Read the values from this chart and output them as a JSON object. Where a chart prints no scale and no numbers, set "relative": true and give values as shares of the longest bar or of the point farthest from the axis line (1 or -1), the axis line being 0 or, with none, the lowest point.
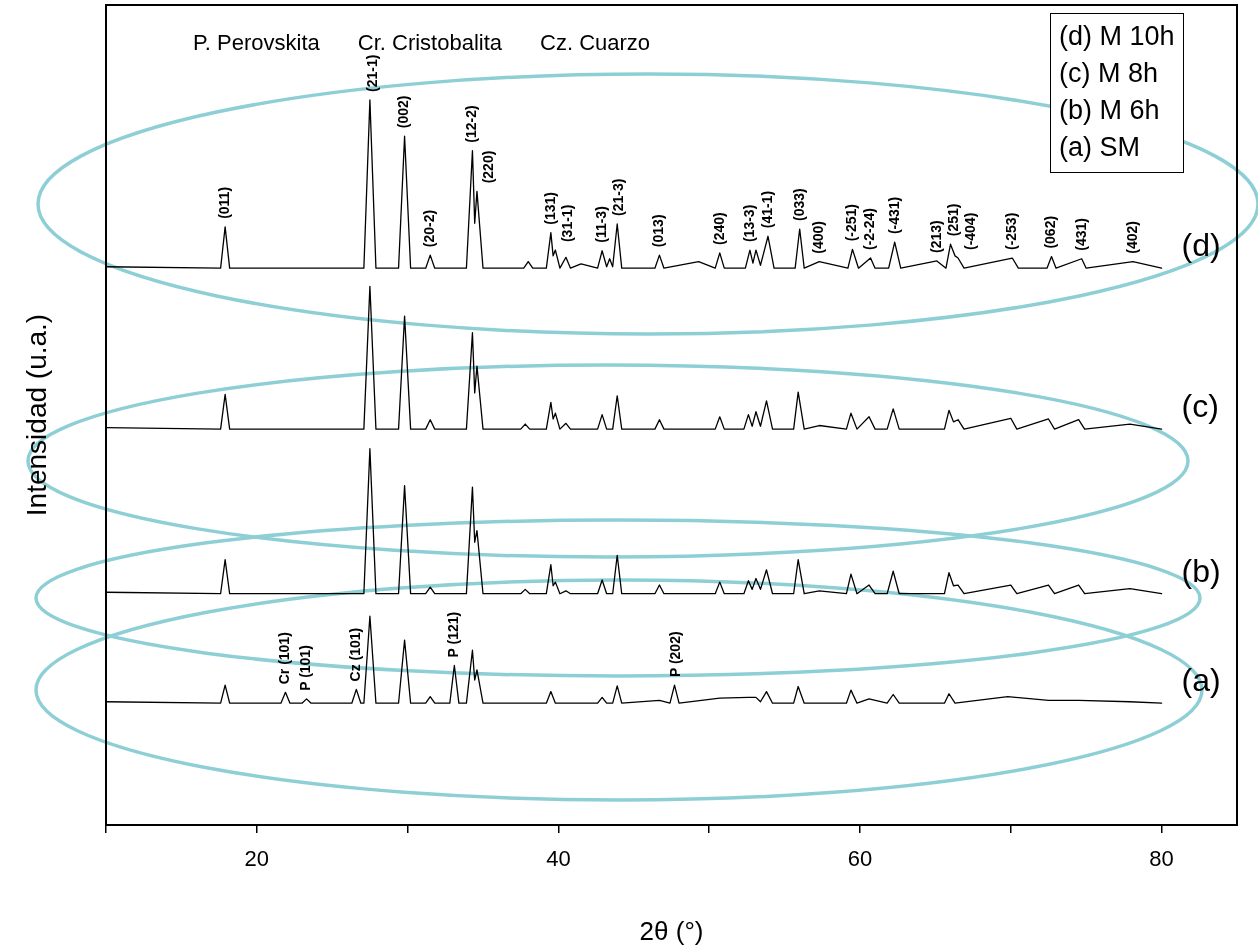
{
  "chart_data": {
    "type": "line",
    "relative": true,
    "xlabel": "2θ (°)",
    "ylabel": "Intensidad (u.a.)",
    "xlim": [
      10,
      85
    ],
    "xticks": [
      {
        "value": 10,
        "label": null
      },
      20,
      {
        "value": 30,
        "label": null
      },
      40,
      {
        "value": 50,
        "label": null
      },
      60,
      {
        "value": 70,
        "label": null
      },
      80
    ],
    "legend": false,
    "grid": false,
    "marker": "none",
    "line_style": "solid",
    "series": [
      {
        "name": "(d)",
        "color": "#000000",
        "x": [
          10,
          17.6,
          17.9,
          18.2,
          27.1,
          27.5,
          27.9,
          29.4,
          29.8,
          30.2,
          31.2,
          31.5,
          31.8,
          33.9,
          34.3,
          34.45,
          34.6,
          35.0,
          37.7,
          38.0,
          38.3,
          39.2,
          39.5,
          39.65,
          39.8,
          40.1,
          40.5,
          40.8,
          41.5,
          42.6,
          42.9,
          43.2,
          43.4,
          43.6,
          43.9,
          44.2,
          46.4,
          46.7,
          47.0,
          49.3,
          50.4,
          50.7,
          51.0,
          52.4,
          52.7,
          52.9,
          53.1,
          53.4,
          53.9,
          54.3,
          55.7,
          56.0,
          56.3,
          57.3,
          59.2,
          59.5,
          59.9,
          60.7,
          61.0,
          61.9,
          62.3,
          62.7,
          65.1,
          65.7,
          66.0,
          66.3,
          66.5,
          66.9,
          70.1,
          70.5,
          72.4,
          72.7,
          73.0,
          74.7,
          75.0,
          78.1,
          80
        ],
        "values": [
          0.77,
          0.768,
          0.825,
          0.768,
          0.768,
          1.0,
          0.768,
          0.768,
          0.95,
          0.768,
          0.768,
          0.786,
          0.768,
          0.768,
          0.93,
          0.83,
          0.874,
          0.768,
          0.768,
          0.777,
          0.768,
          0.768,
          0.817,
          0.785,
          0.793,
          0.768,
          0.783,
          0.768,
          0.774,
          0.768,
          0.792,
          0.77,
          0.781,
          0.77,
          0.829,
          0.768,
          0.768,
          0.786,
          0.768,
          0.777,
          0.768,
          0.789,
          0.768,
          0.768,
          0.793,
          0.775,
          0.793,
          0.772,
          0.812,
          0.768,
          0.768,
          0.822,
          0.768,
          0.777,
          0.768,
          0.794,
          0.768,
          0.782,
          0.768,
          0.768,
          0.804,
          0.768,
          0.778,
          0.768,
          0.801,
          0.785,
          0.782,
          0.768,
          0.782,
          0.768,
          0.768,
          0.784,
          0.768,
          0.781,
          0.768,
          0.777,
          0.768
        ]
      },
      {
        "name": "(c)",
        "color": "#000000",
        "x": [
          10,
          17.6,
          17.9,
          18.2,
          27.1,
          27.5,
          27.9,
          29.4,
          29.8,
          30.2,
          31.2,
          31.5,
          31.8,
          33.9,
          34.3,
          34.45,
          34.6,
          35.0,
          37.5,
          37.8,
          38.1,
          39.2,
          39.5,
          39.65,
          39.8,
          40.1,
          40.5,
          40.8,
          42.6,
          42.9,
          43.2,
          43.6,
          43.9,
          44.2,
          46.4,
          46.7,
          47.0,
          50.4,
          50.7,
          51.0,
          52.3,
          52.6,
          52.85,
          53.1,
          53.4,
          53.8,
          54.2,
          55.6,
          55.9,
          56.3,
          57.3,
          59.1,
          59.4,
          59.8,
          60.6,
          61.0,
          61.8,
          62.2,
          62.6,
          65.6,
          65.9,
          66.2,
          66.5,
          66.9,
          70.0,
          70.4,
          72.5,
          72.9,
          74.5,
          74.9,
          77.9,
          80
        ],
        "values": [
          0.548,
          0.546,
          0.594,
          0.546,
          0.546,
          0.743,
          0.546,
          0.546,
          0.702,
          0.546,
          0.546,
          0.559,
          0.546,
          0.546,
          0.679,
          0.596,
          0.633,
          0.546,
          0.546,
          0.553,
          0.546,
          0.546,
          0.583,
          0.56,
          0.568,
          0.546,
          0.554,
          0.546,
          0.546,
          0.566,
          0.546,
          0.546,
          0.592,
          0.546,
          0.546,
          0.559,
          0.546,
          0.546,
          0.563,
          0.546,
          0.546,
          0.566,
          0.55,
          0.57,
          0.55,
          0.585,
          0.546,
          0.546,
          0.597,
          0.546,
          0.551,
          0.546,
          0.568,
          0.546,
          0.563,
          0.546,
          0.546,
          0.574,
          0.546,
          0.546,
          0.572,
          0.556,
          0.559,
          0.546,
          0.561,
          0.546,
          0.56,
          0.546,
          0.559,
          0.546,
          0.553,
          0.546
        ]
      },
      {
        "name": "(b)",
        "color": "#000000",
        "x": [
          10,
          17.6,
          17.9,
          18.2,
          27.1,
          27.5,
          27.9,
          29.4,
          29.8,
          30.2,
          31.2,
          31.5,
          31.8,
          33.9,
          34.3,
          34.45,
          34.6,
          35.0,
          37.5,
          37.8,
          38.1,
          39.2,
          39.5,
          39.65,
          39.8,
          40.1,
          40.5,
          40.8,
          42.6,
          42.9,
          43.2,
          43.6,
          43.9,
          44.2,
          46.4,
          46.7,
          47.0,
          50.4,
          50.7,
          51.0,
          52.3,
          52.6,
          52.85,
          53.1,
          53.4,
          53.8,
          54.2,
          55.6,
          55.9,
          56.3,
          57.3,
          59.1,
          59.4,
          59.8,
          60.6,
          61.0,
          61.8,
          62.2,
          62.6,
          65.6,
          65.9,
          66.2,
          66.5,
          66.9,
          70.0,
          70.4,
          72.5,
          72.9,
          74.5,
          74.9,
          77.9,
          80
        ],
        "values": [
          0.321,
          0.319,
          0.366,
          0.319,
          0.319,
          0.519,
          0.319,
          0.319,
          0.468,
          0.319,
          0.319,
          0.328,
          0.319,
          0.319,
          0.466,
          0.39,
          0.406,
          0.319,
          0.319,
          0.325,
          0.319,
          0.319,
          0.359,
          0.33,
          0.335,
          0.319,
          0.323,
          0.319,
          0.319,
          0.338,
          0.319,
          0.319,
          0.372,
          0.319,
          0.319,
          0.331,
          0.319,
          0.319,
          0.335,
          0.319,
          0.319,
          0.337,
          0.325,
          0.34,
          0.325,
          0.352,
          0.319,
          0.319,
          0.366,
          0.319,
          0.323,
          0.319,
          0.346,
          0.319,
          0.331,
          0.319,
          0.319,
          0.35,
          0.319,
          0.319,
          0.348,
          0.33,
          0.331,
          0.319,
          0.331,
          0.319,
          0.331,
          0.319,
          0.331,
          0.319,
          0.326,
          0.319
        ]
      },
      {
        "name": "(a)",
        "color": "#000000",
        "x": [
          10,
          17.6,
          17.9,
          18.2,
          21.6,
          21.9,
          22.2,
          23.0,
          23.3,
          23.6,
          26.3,
          26.6,
          26.9,
          27.1,
          27.5,
          27.9,
          29.4,
          29.8,
          30.2,
          31.2,
          31.5,
          31.8,
          32.8,
          33.1,
          33.4,
          33.9,
          34.3,
          34.45,
          34.6,
          35.0,
          39.2,
          39.5,
          39.8,
          42.6,
          42.9,
          43.2,
          43.6,
          43.9,
          44.2,
          46.7,
          47.4,
          47.7,
          48.0,
          50.7,
          52.6,
          53.1,
          53.4,
          53.8,
          54.2,
          55.6,
          55.9,
          56.3,
          59.1,
          59.4,
          59.8,
          60.6,
          61.8,
          62.2,
          62.6,
          65.6,
          65.9,
          66.3,
          69.8,
          72.5,
          74.5,
          77.9,
          80
        ],
        "values": [
          0.17,
          0.168,
          0.193,
          0.168,
          0.168,
          0.183,
          0.168,
          0.168,
          0.174,
          0.168,
          0.168,
          0.187,
          0.168,
          0.168,
          0.288,
          0.168,
          0.168,
          0.255,
          0.168,
          0.168,
          0.177,
          0.168,
          0.168,
          0.22,
          0.168,
          0.168,
          0.241,
          0.2,
          0.214,
          0.168,
          0.168,
          0.184,
          0.168,
          0.168,
          0.176,
          0.168,
          0.168,
          0.192,
          0.168,
          0.172,
          0.168,
          0.193,
          0.168,
          0.175,
          0.176,
          0.176,
          0.17,
          0.184,
          0.168,
          0.168,
          0.191,
          0.168,
          0.168,
          0.186,
          0.168,
          0.174,
          0.168,
          0.18,
          0.168,
          0.168,
          0.181,
          0.168,
          0.177,
          0.172,
          0.172,
          0.17,
          0.168
        ]
      }
    ],
    "annotations": [
      "P. Perovskita",
      "Cr. Cristobalita",
      "Cz. Cuarzo",
      "(d) M 10h",
      "(c) M 8h",
      "(b) M 6h",
      "(a) SM",
      {
        "text": "(011)",
        "x": 17.9,
        "y": 0.825
      },
      {
        "text": "(21-1)",
        "x": 27.5,
        "y": 1.0
      },
      {
        "text": "(002)",
        "x": 29.8,
        "y": 0.95
      },
      {
        "text": "(20-2)",
        "x": 31.5,
        "y": 0.786
      },
      {
        "text": "(12-2)",
        "x": 34.3,
        "y": 0.93
      },
      {
        "text": "(220)",
        "x": 34.6,
        "y": 0.874
      },
      {
        "text": "(131)",
        "x": 39.5,
        "y": 0.817
      },
      {
        "text": "(31-1)",
        "x": 39.8,
        "y": 0.793
      },
      {
        "text": "(11-3)",
        "x": 42.9,
        "y": 0.792
      },
      {
        "text": "(21-3)",
        "x": 43.9,
        "y": 0.829
      },
      {
        "text": "(013)",
        "x": 46.7,
        "y": 0.786
      },
      {
        "text": "(240)",
        "x": 50.7,
        "y": 0.789
      },
      {
        "text": "(13-3)",
        "x": 52.7,
        "y": 0.793
      },
      {
        "text": "(41-1)",
        "x": 53.9,
        "y": 0.812
      },
      {
        "text": "(033)",
        "x": 56.0,
        "y": 0.822
      },
      {
        "text": "(400)",
        "x": 57.3,
        "y": 0.777
      },
      {
        "text": "(-251)",
        "x": 59.5,
        "y": 0.794
      },
      {
        "text": "(-2-24)",
        "x": 60.7,
        "y": 0.782
      },
      {
        "text": "(-431)",
        "x": 62.3,
        "y": 0.804
      },
      {
        "text": "(213)",
        "x": 65.1,
        "y": 0.778
      },
      {
        "text": "(251)",
        "x": 66.0,
        "y": 0.801
      },
      {
        "text": "(-404)",
        "x": 66.5,
        "y": 0.782
      },
      {
        "text": "(-253)",
        "x": 70.1,
        "y": 0.782
      },
      {
        "text": "(062)",
        "x": 72.7,
        "y": 0.784
      },
      {
        "text": "(431)",
        "x": 74.7,
        "y": 0.781
      },
      {
        "text": "(402)",
        "x": 78.1,
        "y": 0.777
      },
      {
        "text": "Cr (101)",
        "x": 21.9,
        "y": 0.183
      },
      {
        "text": "P (101)",
        "x": 23.3,
        "y": 0.174
      },
      {
        "text": "Cz (101)",
        "x": 26.6,
        "y": 0.187
      },
      {
        "text": "P (121)",
        "x": 33.1,
        "y": 0.22
      },
      {
        "text": "P (202)",
        "x": 47.7,
        "y": 0.193
      }
    ]
  }
}
